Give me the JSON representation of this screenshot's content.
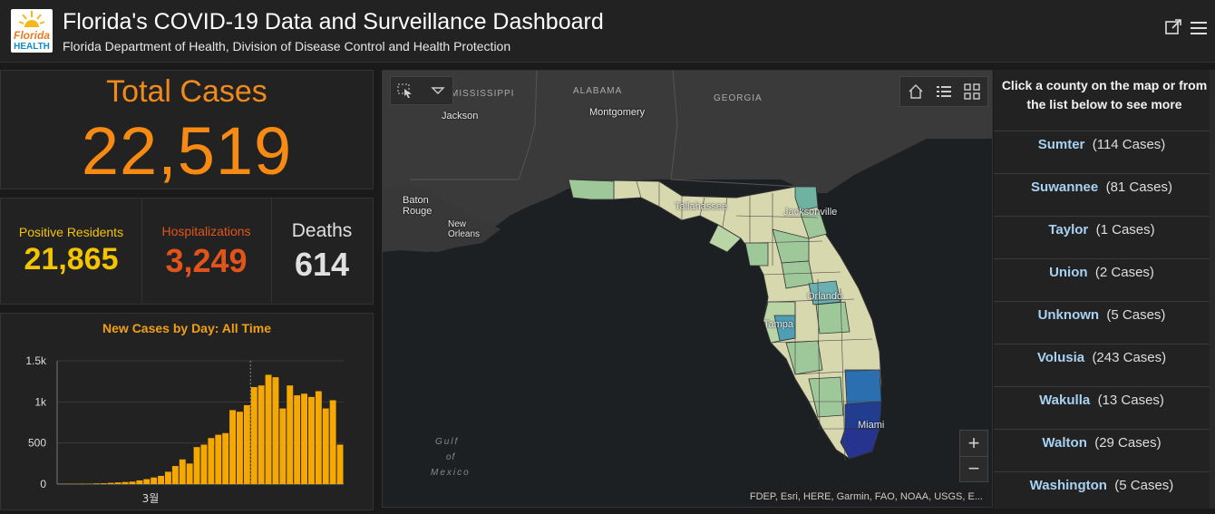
{
  "header": {
    "logo_text_top": "Florida",
    "logo_text_bottom": "HEALTH",
    "title": "Florida's COVID-19 Data and Surveillance Dashboard",
    "subtitle": "Florida Department of Health, Division of Disease Control and Health Protection",
    "icons": [
      "open-external-icon",
      "menu-icon"
    ]
  },
  "totals": {
    "label": "Total Cases",
    "value": "22,519"
  },
  "stats": [
    {
      "label": "Positive Residents",
      "value": "21,865",
      "color": "#f5c400"
    },
    {
      "label": "Hospitalizations",
      "value": "3,249",
      "color": "#e2541a"
    },
    {
      "label": "Deaths",
      "value": "614",
      "color": "#e0e0e0"
    }
  ],
  "chart_data": {
    "type": "bar",
    "title": "New Cases by Day: All Time",
    "xlabel": "",
    "ylabel": "",
    "x_tick_labels": [
      "3월"
    ],
    "y_tick_labels": [
      "0",
      "500",
      "1k",
      "1.5k"
    ],
    "y_ticks": [
      0,
      500,
      1000,
      1500
    ],
    "ylim": [
      0,
      1500
    ],
    "values": [
      2,
      3,
      3,
      5,
      4,
      8,
      10,
      15,
      20,
      25,
      30,
      45,
      60,
      80,
      100,
      150,
      220,
      300,
      250,
      450,
      480,
      560,
      600,
      620,
      900,
      880,
      960,
      1180,
      1200,
      1330,
      1300,
      920,
      1200,
      1080,
      1100,
      1060,
      1130,
      920,
      1020,
      480
    ],
    "bar_color": "#f5a800"
  },
  "map": {
    "state_labels": [
      "MISSISSIPPI",
      "ALABAMA",
      "GEORGIA"
    ],
    "cities": [
      "Jackson",
      "Montgomery",
      "Baton Rouge",
      "New Orleans",
      "Tallahassee",
      "Jacksonville",
      "Orlando",
      "Tampa",
      "Miami"
    ],
    "water_label": [
      "Gulf",
      "of",
      "Mexico"
    ],
    "attribution": "FDEP, Esri, HERE, Garmin, FAO, NOAA, USGS, E...",
    "zoom_in": "+",
    "zoom_out": "−"
  },
  "county_list": {
    "heading": "Click a county on the map or from the list below to see more",
    "items": [
      {
        "name": "Sumter",
        "cases": "(114 Cases)"
      },
      {
        "name": "Suwannee",
        "cases": "(81 Cases)"
      },
      {
        "name": "Taylor",
        "cases": "(1 Cases)"
      },
      {
        "name": "Union",
        "cases": "(2 Cases)"
      },
      {
        "name": "Unknown",
        "cases": "(5 Cases)"
      },
      {
        "name": "Volusia",
        "cases": "(243 Cases)"
      },
      {
        "name": "Wakulla",
        "cases": "(13 Cases)"
      },
      {
        "name": "Walton",
        "cases": "(29 Cases)"
      },
      {
        "name": "Washington",
        "cases": "(5 Cases)"
      }
    ]
  }
}
